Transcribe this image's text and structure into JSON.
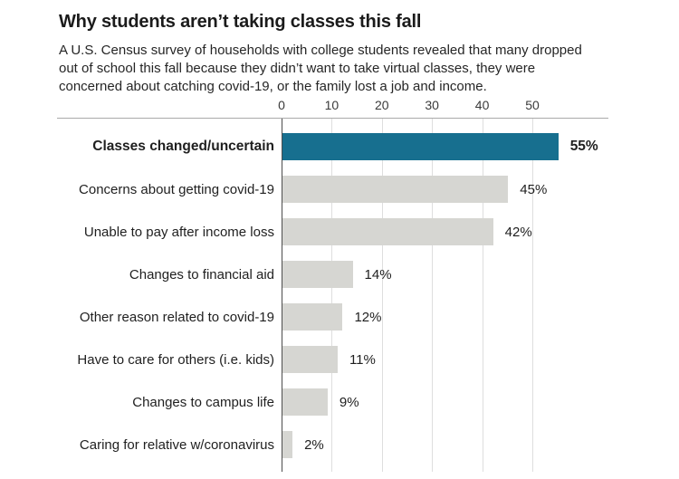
{
  "page": {
    "title": "Why students aren’t taking classes this fall",
    "subtitle": "A U.S. Census survey of households with college students revealed that many dropped out of school this fall because they didn’t want to take virtual classes, they were concerned about catching covid-19, or the family lost a job and income."
  },
  "chart_data": {
    "type": "bar",
    "orientation": "horizontal",
    "title": "Why students aren’t taking classes this fall",
    "categories": [
      "Classes changed/uncertain",
      "Concerns about getting covid-19",
      "Unable to pay after income loss",
      "Changes to financial aid",
      "Other reason related to covid-19",
      "Have to care for others (i.e. kids)",
      "Changes to campus life",
      "Caring for relative w/coronavirus"
    ],
    "values": [
      55,
      45,
      42,
      14,
      12,
      11,
      9,
      2
    ],
    "value_labels": [
      "55%",
      "45%",
      "42%",
      "14%",
      "12%",
      "11%",
      "9%",
      "2%"
    ],
    "highlight_index": 0,
    "x_ticks": [
      0,
      10,
      20,
      30,
      40,
      50
    ],
    "xlim": [
      0,
      65
    ],
    "grid": true,
    "legend": "none",
    "colors": {
      "highlight_bar": "#176f8f",
      "bar": "#d6d6d2",
      "gridline": "#dedede",
      "axis_rule": "#a9a9a9",
      "zero_line": "#4d4d4d"
    }
  }
}
